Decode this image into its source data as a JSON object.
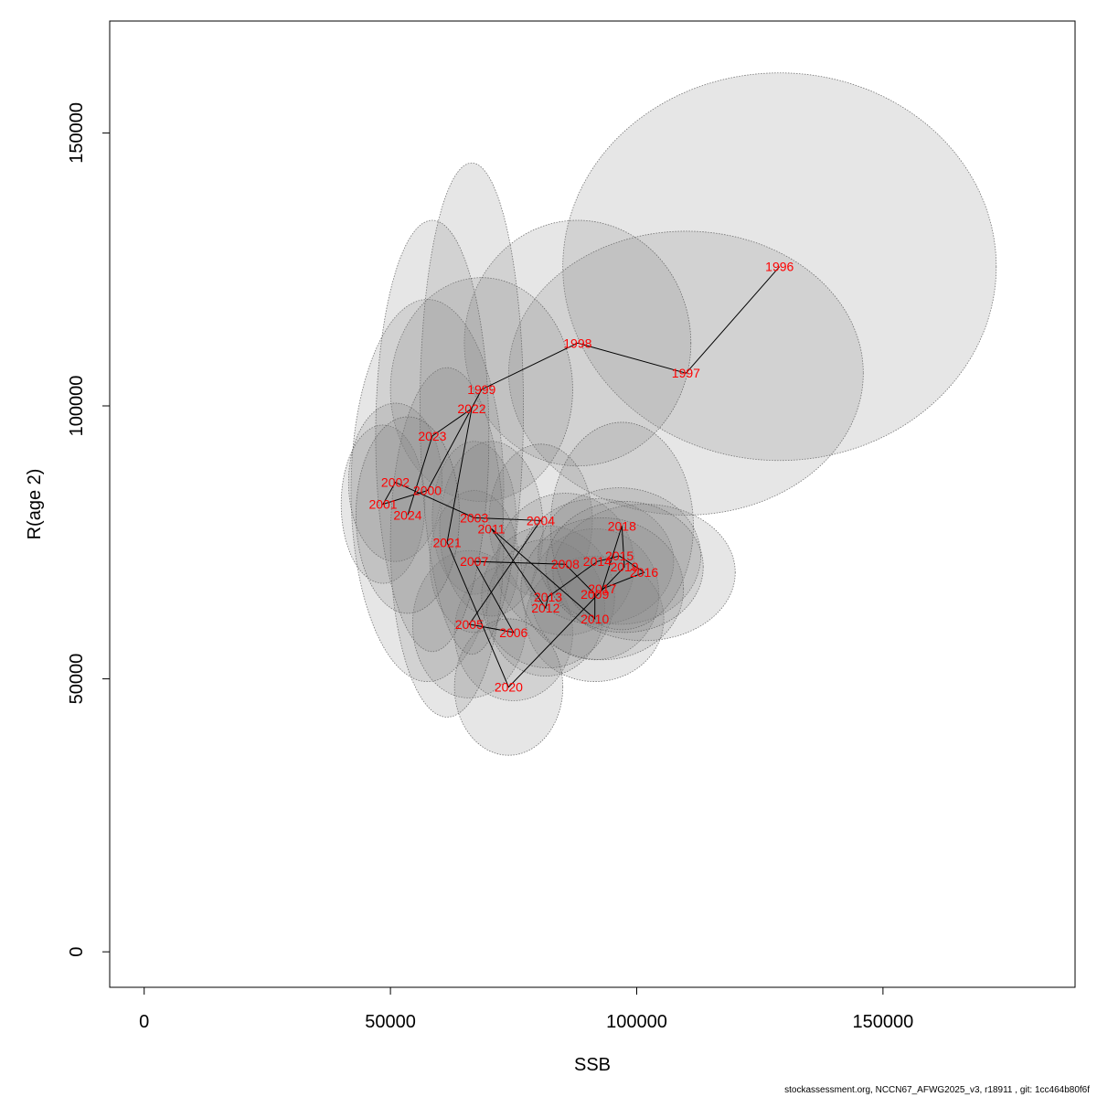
{
  "footer_text": "stockassessment.org, NCCN67_AFWG2025_v3, r18911 , git: 1cc464b80f6f",
  "colors": {
    "ellipse_fill": "#808080",
    "ellipse_stroke": "#555555",
    "label": "#ff0000",
    "line": "#000000",
    "axis": "#000000"
  },
  "chart_data": {
    "type": "scatter",
    "xlabel": "SSB",
    "ylabel": "R(age 2)",
    "xlim": [
      -7000,
      189000
    ],
    "ylim": [
      -6500,
      170500
    ],
    "xticks": [
      0,
      50000,
      100000,
      150000
    ],
    "yticks": [
      0,
      50000,
      100000,
      150000
    ],
    "x_tick_labels": [
      "0",
      "50000",
      "100000",
      "150000"
    ],
    "y_tick_labels": [
      "0",
      "50000",
      "100000",
      "150000"
    ],
    "points": [
      {
        "year": "1996",
        "x": 129000,
        "y": 125500,
        "rx": 44000,
        "ry": 35500
      },
      {
        "year": "1997",
        "x": 110000,
        "y": 106000,
        "rx": 36000,
        "ry": 26000
      },
      {
        "year": "1998",
        "x": 88000,
        "y": 111500,
        "rx": 23000,
        "ry": 22500
      },
      {
        "year": "1999",
        "x": 68500,
        "y": 103000,
        "rx": 18500,
        "ry": 20500
      },
      {
        "year": "2000",
        "x": 57500,
        "y": 84500,
        "rx": 15500,
        "ry": 35000
      },
      {
        "year": "2001",
        "x": 48500,
        "y": 82000,
        "rx": 8500,
        "ry": 14500
      },
      {
        "year": "2002",
        "x": 51000,
        "y": 86000,
        "rx": 9500,
        "ry": 14500
      },
      {
        "year": "2003",
        "x": 67000,
        "y": 79500,
        "rx": 8500,
        "ry": 14000
      },
      {
        "year": "2004",
        "x": 80500,
        "y": 79000,
        "rx": 10500,
        "ry": 14000
      },
      {
        "year": "2005",
        "x": 66000,
        "y": 60000,
        "rx": 11500,
        "ry": 13500
      },
      {
        "year": "2006",
        "x": 75000,
        "y": 58500,
        "rx": 12000,
        "ry": 12500
      },
      {
        "year": "2007",
        "x": 67000,
        "y": 71500,
        "rx": 9000,
        "ry": 13000
      },
      {
        "year": "2008",
        "x": 85500,
        "y": 71000,
        "rx": 14000,
        "ry": 13000
      },
      {
        "year": "2009",
        "x": 91500,
        "y": 65500,
        "rx": 13000,
        "ry": 12000
      },
      {
        "year": "2010",
        "x": 91500,
        "y": 61000,
        "rx": 14000,
        "ry": 11500
      },
      {
        "year": "2011",
        "x": 70500,
        "y": 77500,
        "rx": 10500,
        "ry": 16000
      },
      {
        "year": "2012",
        "x": 81500,
        "y": 63000,
        "rx": 12000,
        "ry": 12500
      },
      {
        "year": "2013",
        "x": 82000,
        "y": 65000,
        "rx": 13500,
        "ry": 13000
      },
      {
        "year": "2014",
        "x": 92000,
        "y": 71500,
        "rx": 15500,
        "ry": 11500
      },
      {
        "year": "2015",
        "x": 96500,
        "y": 72500,
        "rx": 16500,
        "ry": 12500
      },
      {
        "year": "2016",
        "x": 101500,
        "y": 69500,
        "rx": 18500,
        "ry": 12500
      },
      {
        "year": "2017",
        "x": 93000,
        "y": 66500,
        "rx": 16500,
        "ry": 13000
      },
      {
        "year": "2018",
        "x": 97000,
        "y": 78000,
        "rx": 14500,
        "ry": 19000
      },
      {
        "year": "2019",
        "x": 97500,
        "y": 70500,
        "rx": 16000,
        "ry": 12000
      },
      {
        "year": "2020",
        "x": 74000,
        "y": 48500,
        "rx": 11000,
        "ry": 12500
      },
      {
        "year": "2021",
        "x": 61500,
        "y": 75000,
        "rx": 11500,
        "ry": 32000
      },
      {
        "year": "2022",
        "x": 66500,
        "y": 99500,
        "rx": 10500,
        "ry": 45000
      },
      {
        "year": "2023",
        "x": 58500,
        "y": 94500,
        "rx": 11500,
        "ry": 39500
      },
      {
        "year": "2024",
        "x": 53500,
        "y": 80000,
        "rx": 10500,
        "ry": 18000
      }
    ]
  }
}
